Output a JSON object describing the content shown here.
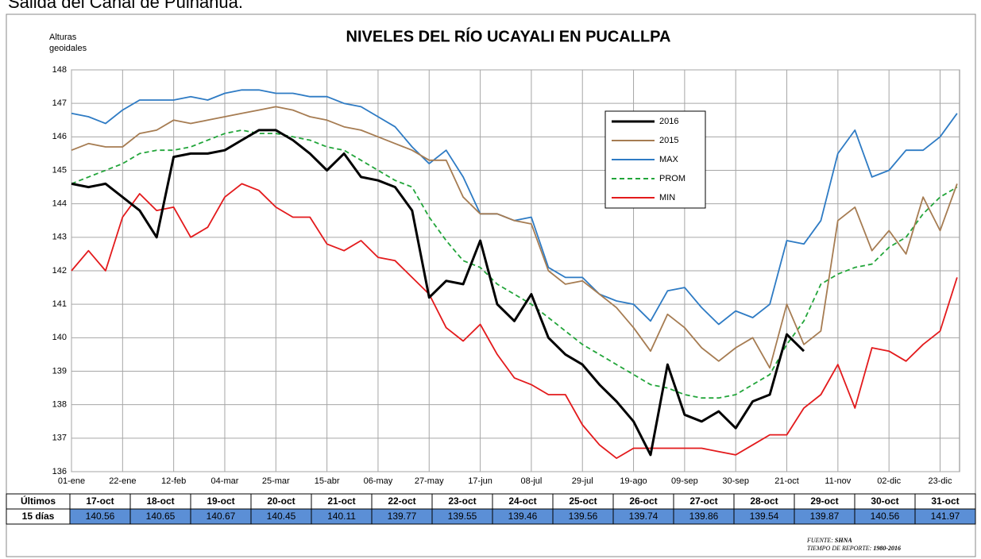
{
  "caption": "Salida del Canal de Puinahua.",
  "chart_data": {
    "type": "line",
    "title": "NIVELES DEL RÍO UCAYALI EN PUCALLPA",
    "ylabel": [
      "Alturas",
      "geoidales"
    ],
    "x": [
      0,
      7,
      14,
      21,
      28,
      35,
      42,
      49,
      56,
      63,
      70,
      77,
      84,
      91,
      98,
      105,
      112,
      119,
      126,
      133,
      140,
      147,
      154,
      161,
      168,
      175,
      182,
      189,
      196,
      203,
      210,
      217,
      224,
      231,
      238,
      245,
      252,
      259,
      266,
      273,
      280,
      287,
      294,
      301,
      308,
      315,
      322,
      329,
      336,
      343,
      350,
      357,
      364
    ],
    "xlim": [
      0,
      365
    ],
    "xticks": [
      {
        "value": 0,
        "label": "01-ene"
      },
      {
        "value": 21,
        "label": "22-ene"
      },
      {
        "value": 42,
        "label": "12-feb"
      },
      {
        "value": 63,
        "label": "04-mar"
      },
      {
        "value": 84,
        "label": "25-mar"
      },
      {
        "value": 105,
        "label": "15-abr"
      },
      {
        "value": 126,
        "label": "06-may"
      },
      {
        "value": 147,
        "label": "27-may"
      },
      {
        "value": 168,
        "label": "17-jun"
      },
      {
        "value": 189,
        "label": "08-jul"
      },
      {
        "value": 210,
        "label": "29-jul"
      },
      {
        "value": 231,
        "label": "19-ago"
      },
      {
        "value": 252,
        "label": "09-sep"
      },
      {
        "value": 273,
        "label": "30-sep"
      },
      {
        "value": 294,
        "label": "21-oct"
      },
      {
        "value": 315,
        "label": "11-nov"
      },
      {
        "value": 336,
        "label": "02-dic"
      },
      {
        "value": 357,
        "label": "23-dic"
      }
    ],
    "ylim": [
      136,
      148
    ],
    "yticks": [
      136,
      137,
      138,
      139,
      140,
      141,
      142,
      143,
      144,
      145,
      146,
      147,
      148
    ],
    "grid": true,
    "series": [
      {
        "name": "2016",
        "color": "#000000",
        "style": "solid",
        "values": [
          144.6,
          144.5,
          144.6,
          144.2,
          143.8,
          143.0,
          145.4,
          145.5,
          145.5,
          145.6,
          145.9,
          146.2,
          146.2,
          145.9,
          145.5,
          145.0,
          145.5,
          144.8,
          144.7,
          144.5,
          143.8,
          141.2,
          141.7,
          141.6,
          142.9,
          141.0,
          140.5,
          141.3,
          140.0,
          139.5,
          139.2,
          138.6,
          138.1,
          137.5,
          136.5,
          139.2,
          137.7,
          137.5,
          137.8,
          137.3,
          138.1,
          138.3,
          140.1,
          139.6,
          null,
          null,
          null,
          null,
          null,
          null,
          null,
          null,
          null
        ]
      },
      {
        "name": "2015",
        "color": "#a67c52",
        "style": "solid",
        "values": [
          145.6,
          145.8,
          145.7,
          145.7,
          146.1,
          146.2,
          146.5,
          146.4,
          146.5,
          146.6,
          146.7,
          146.8,
          146.9,
          146.8,
          146.6,
          146.5,
          146.3,
          146.2,
          146.0,
          145.8,
          145.6,
          145.3,
          145.3,
          144.2,
          143.7,
          143.7,
          143.5,
          143.4,
          142.0,
          141.6,
          141.7,
          141.3,
          140.9,
          140.3,
          139.6,
          140.7,
          140.3,
          139.7,
          139.3,
          139.7,
          140.0,
          139.1,
          141.0,
          139.8,
          140.2,
          143.5,
          143.9,
          142.6,
          143.2,
          142.5,
          144.2,
          143.2,
          144.6
        ]
      },
      {
        "name": "MAX",
        "color": "#2e7bc4",
        "style": "solid",
        "values": [
          146.7,
          146.6,
          146.4,
          146.8,
          147.1,
          147.1,
          147.1,
          147.2,
          147.1,
          147.3,
          147.4,
          147.4,
          147.3,
          147.3,
          147.2,
          147.2,
          147.0,
          146.9,
          146.6,
          146.3,
          145.7,
          145.2,
          145.6,
          144.8,
          143.7,
          143.7,
          143.5,
          143.6,
          142.1,
          141.8,
          141.8,
          141.3,
          141.1,
          141.0,
          140.5,
          141.4,
          141.5,
          140.9,
          140.4,
          140.8,
          140.6,
          141.0,
          142.9,
          142.8,
          143.5,
          145.5,
          146.2,
          144.8,
          145.0,
          145.6,
          145.6,
          146.0,
          146.7
        ]
      },
      {
        "name": "PROM",
        "color": "#22a53a",
        "style": "dashed",
        "values": [
          144.6,
          144.8,
          145.0,
          145.2,
          145.5,
          145.6,
          145.6,
          145.7,
          145.9,
          146.1,
          146.2,
          146.1,
          146.1,
          146.0,
          145.9,
          145.7,
          145.6,
          145.3,
          145.0,
          144.7,
          144.5,
          143.6,
          142.9,
          142.3,
          142.1,
          141.6,
          141.3,
          141.0,
          140.6,
          140.2,
          139.8,
          139.5,
          139.2,
          138.9,
          138.6,
          138.5,
          138.3,
          138.2,
          138.2,
          138.3,
          138.6,
          138.9,
          139.8,
          140.5,
          141.6,
          141.9,
          142.1,
          142.2,
          142.7,
          143.0,
          143.7,
          144.2,
          144.5
        ]
      },
      {
        "name": "MIN",
        "color": "#e31a1c",
        "style": "solid",
        "values": [
          142.0,
          142.6,
          142.0,
          143.6,
          144.3,
          143.8,
          143.9,
          143.0,
          143.3,
          144.2,
          144.6,
          144.4,
          143.9,
          143.6,
          143.6,
          142.8,
          142.6,
          142.9,
          142.4,
          142.3,
          141.8,
          141.3,
          140.3,
          139.9,
          140.4,
          139.5,
          138.8,
          138.6,
          138.3,
          138.3,
          137.4,
          136.8,
          136.4,
          136.7,
          136.7,
          136.7,
          136.7,
          136.7,
          136.6,
          136.5,
          136.8,
          137.1,
          137.1,
          137.9,
          138.3,
          139.2,
          137.9,
          139.7,
          139.6,
          139.3,
          139.8,
          140.2,
          141.8
        ]
      }
    ]
  },
  "table": {
    "header": [
      "Últimos",
      "17-oct",
      "18-oct",
      "19-oct",
      "20-oct",
      "21-oct",
      "22-oct",
      "23-oct",
      "24-oct",
      "25-oct",
      "26-oct",
      "27-oct",
      "28-oct",
      "29-oct",
      "30-oct",
      "31-oct"
    ],
    "row": [
      "15 días",
      140.56,
      140.65,
      140.67,
      140.45,
      140.11,
      139.77,
      139.55,
      139.46,
      139.56,
      139.74,
      139.86,
      139.54,
      139.87,
      140.56,
      141.97
    ]
  },
  "footnote": {
    "source_label": "FUENTE:",
    "source": "SHNA",
    "period_label": "TIEMPO DE REPORTE:",
    "period": "1980-2016"
  }
}
